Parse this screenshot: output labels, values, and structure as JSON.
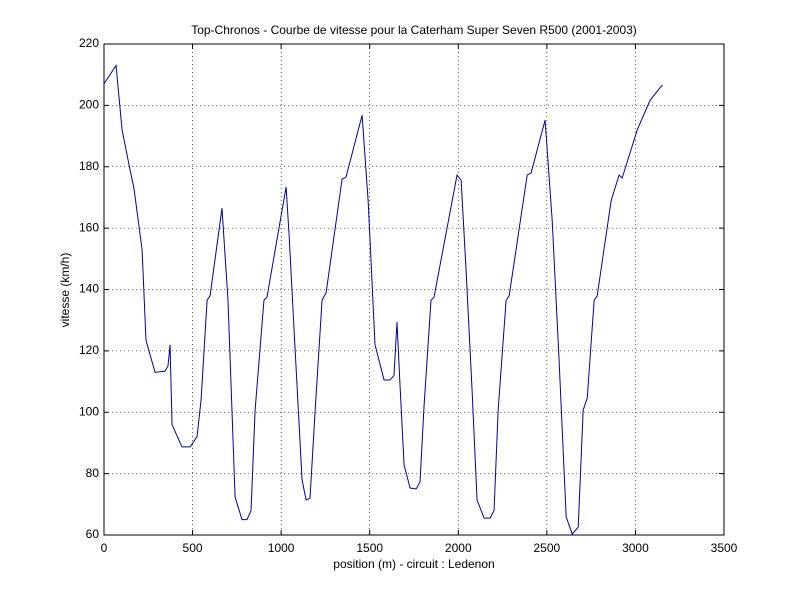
{
  "chart_data": {
    "type": "line",
    "title": "Top-Chronos - Courbe de vitesse pour la Caterham Super Seven R500 (2001-2003)",
    "x_label": "position (m) - circuit : Ledenon",
    "y_label": "vitesse (km/h)",
    "x": [
      0,
      68,
      102,
      147,
      169,
      215,
      237,
      288,
      344,
      361,
      373,
      384,
      440,
      486,
      525,
      548,
      582,
      599,
      666,
      700,
      740,
      779,
      807,
      830,
      853,
      903,
      920,
      1028,
      1045,
      1073,
      1118,
      1141,
      1163,
      1192,
      1231,
      1254,
      1344,
      1366,
      1457,
      1491,
      1530,
      1581,
      1615,
      1637,
      1654,
      1671,
      1694,
      1728,
      1762,
      1784,
      1807,
      1846,
      1863,
      1993,
      2016,
      2044,
      2078,
      2106,
      2146,
      2180,
      2202,
      2225,
      2270,
      2287,
      2389,
      2411,
      2490,
      2530,
      2569,
      2609,
      2643,
      2677,
      2705,
      2728,
      2767,
      2784,
      2863,
      2908,
      2925,
      3010,
      3083,
      3151
    ],
    "series": [
      {
        "color": "#0000a0",
        "values": [
          207,
          213,
          192,
          179,
          173,
          153,
          123.5,
          113,
          113.4,
          115,
          122,
          96,
          88.7,
          88.7,
          92,
          104,
          136.5,
          138,
          166.5,
          136.5,
          72.4,
          65,
          65,
          68,
          100.7,
          136.5,
          137.5,
          173.4,
          157.7,
          126.8,
          78,
          71.4,
          72,
          100.7,
          136.5,
          139,
          176,
          176.6,
          196.8,
          169,
          122,
          110.5,
          110.5,
          112,
          129.4,
          108.9,
          82.8,
          75.3,
          75,
          77.3,
          102.3,
          136.5,
          137.5,
          177.3,
          175.6,
          146.3,
          107,
          71.4,
          65.5,
          65.5,
          68,
          100.7,
          136.5,
          137.9,
          177.3,
          178,
          195.2,
          162.6,
          117,
          65.9,
          60.3,
          62.6,
          100.7,
          104.6,
          136.5,
          137.9,
          169,
          177.3,
          176.3,
          192,
          201.7,
          206.6
        ]
      }
    ],
    "xlim": [
      0,
      3500
    ],
    "xticks": [
      0,
      500,
      1000,
      1500,
      2000,
      2500,
      3000,
      3500
    ],
    "ylim": [
      60,
      220
    ],
    "yticks": [
      60,
      80,
      100,
      120,
      140,
      160,
      180,
      200,
      220
    ],
    "grid": true
  }
}
